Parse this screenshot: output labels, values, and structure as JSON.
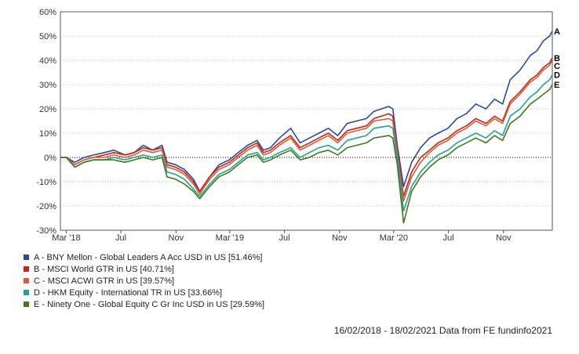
{
  "chart_data": {
    "type": "line",
    "title": "",
    "xlabel": "",
    "ylabel": "",
    "ylim": [
      -30,
      60
    ],
    "yticks": [
      -30,
      -20,
      -10,
      0,
      10,
      20,
      30,
      40,
      50,
      60
    ],
    "ytick_labels": [
      "-30%",
      "-20%",
      "-10%",
      "0%",
      "10%",
      "20%",
      "30%",
      "40%",
      "50%",
      "60%"
    ],
    "xlim": [
      "2018-02-16",
      "2021-02-18"
    ],
    "xticks": [
      "2018-03-01",
      "2018-07-01",
      "2018-11-01",
      "2019-03-01",
      "2019-07-01",
      "2019-11-01",
      "2020-03-01",
      "2020-07-01",
      "2020-11-01"
    ],
    "xtick_labels": [
      "Mar '18",
      "Jul",
      "Nov",
      "Mar '19",
      "Jul",
      "Nov",
      "Mar '20",
      "Jul",
      "Nov"
    ],
    "grid": "horizontal dotted",
    "zero_line": "dotted",
    "legend_position": "bottom-left",
    "series": [
      {
        "name": "A - BNY Mellon - Global Leaders A Acc USD in US [51.46%]",
        "end_label": "A",
        "color": "#2a4a9e",
        "x": [
          "2018-02-16",
          "2018-03-01",
          "2018-03-20",
          "2018-04-10",
          "2018-05-01",
          "2018-05-25",
          "2018-06-15",
          "2018-07-10",
          "2018-07-31",
          "2018-08-20",
          "2018-09-10",
          "2018-10-01",
          "2018-10-12",
          "2018-10-31",
          "2018-11-20",
          "2018-12-10",
          "2018-12-24",
          "2019-01-15",
          "2019-02-05",
          "2019-02-28",
          "2019-03-20",
          "2019-04-10",
          "2019-05-01",
          "2019-05-15",
          "2019-05-31",
          "2019-06-20",
          "2019-07-15",
          "2019-08-05",
          "2019-08-26",
          "2019-09-16",
          "2019-10-07",
          "2019-10-28",
          "2019-11-18",
          "2019-12-09",
          "2019-12-31",
          "2020-01-17",
          "2020-02-19",
          "2020-02-28",
          "2020-03-09",
          "2020-03-23",
          "2020-04-10",
          "2020-04-30",
          "2020-05-20",
          "2020-06-08",
          "2020-06-30",
          "2020-07-20",
          "2020-08-10",
          "2020-08-31",
          "2020-09-23",
          "2020-10-12",
          "2020-10-30",
          "2020-11-16",
          "2020-12-08",
          "2020-12-31",
          "2021-01-15",
          "2021-01-29",
          "2021-02-12",
          "2021-02-18"
        ],
        "values": [
          0,
          0,
          -2,
          0,
          1,
          2,
          3,
          1,
          2,
          5,
          3,
          5,
          -2,
          -3,
          -5,
          -9,
          -14,
          -8,
          -3,
          -1,
          2,
          5,
          7,
          3,
          4,
          8,
          12,
          6,
          8,
          10,
          12,
          9,
          14,
          15,
          16,
          19,
          21,
          20,
          5,
          -12,
          -2,
          4,
          8,
          10,
          12,
          16,
          18,
          22,
          20,
          24,
          22,
          32,
          36,
          42,
          44,
          48,
          50,
          52
        ]
      },
      {
        "name": "B - MSCI World GTR in US [40.71%]",
        "end_label": "B",
        "color": "#c0261b",
        "x": [
          "2018-02-16",
          "2018-03-01",
          "2018-03-20",
          "2018-04-10",
          "2018-05-01",
          "2018-05-25",
          "2018-06-15",
          "2018-07-10",
          "2018-07-31",
          "2018-08-20",
          "2018-09-10",
          "2018-10-01",
          "2018-10-12",
          "2018-10-31",
          "2018-11-20",
          "2018-12-10",
          "2018-12-24",
          "2019-01-15",
          "2019-02-05",
          "2019-02-28",
          "2019-03-20",
          "2019-04-10",
          "2019-05-01",
          "2019-05-15",
          "2019-05-31",
          "2019-06-20",
          "2019-07-15",
          "2019-08-05",
          "2019-08-26",
          "2019-09-16",
          "2019-10-07",
          "2019-10-28",
          "2019-11-18",
          "2019-12-09",
          "2019-12-31",
          "2020-01-17",
          "2020-02-19",
          "2020-02-28",
          "2020-03-09",
          "2020-03-23",
          "2020-04-10",
          "2020-04-30",
          "2020-05-20",
          "2020-06-08",
          "2020-06-30",
          "2020-07-20",
          "2020-08-10",
          "2020-08-31",
          "2020-09-23",
          "2020-10-12",
          "2020-10-30",
          "2020-11-16",
          "2020-12-08",
          "2020-12-31",
          "2021-01-15",
          "2021-01-29",
          "2021-02-12",
          "2021-02-18"
        ],
        "values": [
          0,
          0,
          -3,
          -1,
          0,
          1,
          2,
          1,
          2,
          4,
          3,
          4,
          -3,
          -4,
          -6,
          -10,
          -14,
          -8,
          -4,
          -2,
          1,
          4,
          6,
          2,
          3,
          6,
          9,
          4,
          6,
          8,
          10,
          7,
          11,
          12,
          13,
          16,
          18,
          17,
          3,
          -16,
          -6,
          0,
          3,
          6,
          8,
          11,
          13,
          16,
          14,
          17,
          15,
          23,
          27,
          32,
          34,
          37,
          39,
          41
        ]
      },
      {
        "name": "C - MSCI ACWI GTR in US [39.57%]",
        "end_label": "C",
        "color": "#e05a34",
        "x": [
          "2018-02-16",
          "2018-03-01",
          "2018-03-20",
          "2018-04-10",
          "2018-05-01",
          "2018-05-25",
          "2018-06-15",
          "2018-07-10",
          "2018-07-31",
          "2018-08-20",
          "2018-09-10",
          "2018-10-01",
          "2018-10-12",
          "2018-10-31",
          "2018-11-20",
          "2018-12-10",
          "2018-12-24",
          "2019-01-15",
          "2019-02-05",
          "2019-02-28",
          "2019-03-20",
          "2019-04-10",
          "2019-05-01",
          "2019-05-15",
          "2019-05-31",
          "2019-06-20",
          "2019-07-15",
          "2019-08-05",
          "2019-08-26",
          "2019-09-16",
          "2019-10-07",
          "2019-10-28",
          "2019-11-18",
          "2019-12-09",
          "2019-12-31",
          "2020-01-17",
          "2020-02-19",
          "2020-02-28",
          "2020-03-09",
          "2020-03-23",
          "2020-04-10",
          "2020-04-30",
          "2020-05-20",
          "2020-06-08",
          "2020-06-30",
          "2020-07-20",
          "2020-08-10",
          "2020-08-31",
          "2020-09-23",
          "2020-10-12",
          "2020-10-30",
          "2020-11-16",
          "2020-12-08",
          "2020-12-31",
          "2021-01-15",
          "2021-01-29",
          "2021-02-12",
          "2021-02-18"
        ],
        "values": [
          0,
          0,
          -3,
          -1,
          0,
          0,
          1,
          0,
          1,
          3,
          2,
          3,
          -4,
          -5,
          -7,
          -11,
          -15,
          -9,
          -5,
          -3,
          0,
          3,
          5,
          1,
          2,
          5,
          8,
          3,
          5,
          7,
          9,
          6,
          10,
          11,
          12,
          15,
          16,
          15,
          2,
          -18,
          -8,
          -2,
          2,
          5,
          7,
          10,
          12,
          15,
          13,
          16,
          14,
          22,
          26,
          31,
          33,
          36,
          38,
          40
        ]
      },
      {
        "name": "D - HKM Equity - International TR in US [33.66%]",
        "end_label": "D",
        "color": "#23a09a",
        "x": [
          "2018-02-16",
          "2018-03-01",
          "2018-03-20",
          "2018-04-10",
          "2018-05-01",
          "2018-05-25",
          "2018-06-15",
          "2018-07-10",
          "2018-07-31",
          "2018-08-20",
          "2018-09-10",
          "2018-10-01",
          "2018-10-12",
          "2018-10-31",
          "2018-11-20",
          "2018-12-10",
          "2018-12-24",
          "2019-01-15",
          "2019-02-05",
          "2019-02-28",
          "2019-03-20",
          "2019-04-10",
          "2019-05-01",
          "2019-05-15",
          "2019-05-31",
          "2019-06-20",
          "2019-07-15",
          "2019-08-05",
          "2019-08-26",
          "2019-09-16",
          "2019-10-07",
          "2019-10-28",
          "2019-11-18",
          "2019-12-09",
          "2019-12-31",
          "2020-01-17",
          "2020-02-19",
          "2020-02-28",
          "2020-03-09",
          "2020-03-23",
          "2020-04-10",
          "2020-04-30",
          "2020-05-20",
          "2020-06-08",
          "2020-06-30",
          "2020-07-20",
          "2020-08-10",
          "2020-08-31",
          "2020-09-23",
          "2020-10-12",
          "2020-10-30",
          "2020-11-16",
          "2020-12-08",
          "2020-12-31",
          "2021-01-15",
          "2021-01-29",
          "2021-02-12",
          "2021-02-18"
        ],
        "values": [
          0,
          0,
          -4,
          -2,
          -1,
          -1,
          0,
          -1,
          0,
          1,
          0,
          1,
          -6,
          -7,
          -9,
          -13,
          -16,
          -11,
          -7,
          -5,
          -2,
          1,
          2,
          -1,
          0,
          2,
          4,
          0,
          2,
          4,
          5,
          3,
          7,
          8,
          9,
          12,
          13,
          12,
          0,
          -22,
          -12,
          -6,
          -2,
          1,
          3,
          6,
          8,
          10,
          8,
          11,
          9,
          17,
          20,
          25,
          27,
          30,
          32,
          34
        ]
      },
      {
        "name": "E - Ninety One - Global Equity C Gr Inc USD in US [29.59%]",
        "end_label": "E",
        "color": "#3f7a1c",
        "x": [
          "2018-02-16",
          "2018-03-01",
          "2018-03-20",
          "2018-04-10",
          "2018-05-01",
          "2018-05-25",
          "2018-06-15",
          "2018-07-10",
          "2018-07-31",
          "2018-08-20",
          "2018-09-10",
          "2018-10-01",
          "2018-10-12",
          "2018-10-31",
          "2018-11-20",
          "2018-12-10",
          "2018-12-24",
          "2019-01-15",
          "2019-02-05",
          "2019-02-28",
          "2019-03-20",
          "2019-04-10",
          "2019-05-01",
          "2019-05-15",
          "2019-05-31",
          "2019-06-20",
          "2019-07-15",
          "2019-08-05",
          "2019-08-26",
          "2019-09-16",
          "2019-10-07",
          "2019-10-28",
          "2019-11-18",
          "2019-12-09",
          "2019-12-31",
          "2020-01-17",
          "2020-02-19",
          "2020-02-28",
          "2020-03-09",
          "2020-03-23",
          "2020-04-10",
          "2020-04-30",
          "2020-05-20",
          "2020-06-08",
          "2020-06-30",
          "2020-07-20",
          "2020-08-10",
          "2020-08-31",
          "2020-09-23",
          "2020-10-12",
          "2020-10-30",
          "2020-11-16",
          "2020-12-08",
          "2020-12-31",
          "2021-01-15",
          "2021-01-29",
          "2021-02-12",
          "2021-02-18"
        ],
        "values": [
          0,
          0,
          -4,
          -2,
          -1,
          -1,
          -1,
          -2,
          -1,
          0,
          -1,
          0,
          -8,
          -9,
          -11,
          -14,
          -17,
          -12,
          -8,
          -6,
          -3,
          0,
          1,
          -2,
          -1,
          1,
          3,
          -1,
          0,
          2,
          3,
          1,
          4,
          5,
          6,
          8,
          9,
          8,
          -3,
          -27,
          -14,
          -8,
          -4,
          -1,
          1,
          4,
          6,
          8,
          6,
          9,
          7,
          14,
          17,
          22,
          24,
          26,
          28,
          30
        ]
      }
    ]
  },
  "footer_text": "16/02/2018 - 18/02/2021 Data from FE fundinfo2021"
}
